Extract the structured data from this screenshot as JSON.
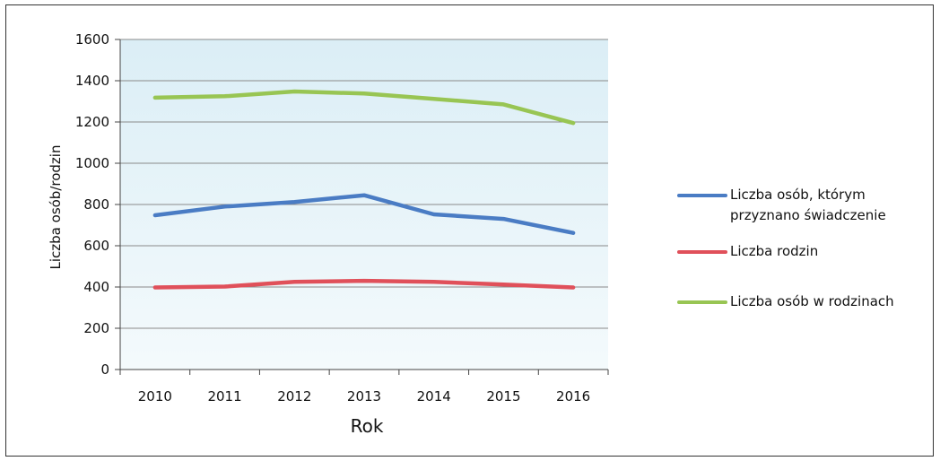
{
  "chart_data": {
    "type": "line",
    "xlabel": "Rok",
    "ylabel": "Liczba osób/rodzin",
    "categories": [
      "2010",
      "2011",
      "2012",
      "2013",
      "2014",
      "2015",
      "2016"
    ],
    "ylim": [
      0,
      1600
    ],
    "yticks": [
      0,
      200,
      400,
      600,
      800,
      1000,
      1200,
      1400,
      1600
    ],
    "grid": true,
    "legend_position": "right",
    "series": [
      {
        "name": "Liczba osób, którym przyznano świadczenie",
        "color": "#4a7cc4",
        "values": [
          748,
          790,
          812,
          845,
          752,
          730,
          662
        ]
      },
      {
        "name": "Liczba rodzin",
        "color": "#e0505a",
        "values": [
          398,
          402,
          425,
          430,
          425,
          412,
          398
        ]
      },
      {
        "name": "Liczba osób w rodzinach",
        "color": "#98c553",
        "values": [
          1318,
          1325,
          1348,
          1338,
          1312,
          1285,
          1195
        ]
      }
    ]
  }
}
